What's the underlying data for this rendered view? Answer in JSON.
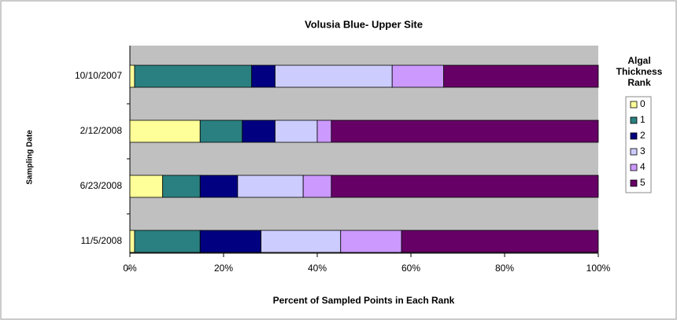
{
  "chart_data": {
    "type": "stacked_barh",
    "title": "Volusia Blue- Upper Site",
    "x_label": "Percent of Sampled Points in Each Rank",
    "y_label": "Sampling Date",
    "legend_title": "Algal Thickness Rank",
    "categories": [
      "10/10/2007",
      "2/12/2008",
      "6/23/2008",
      "11/5/2008"
    ],
    "series": [
      {
        "name": "0",
        "color": "#ffff99",
        "values": [
          1,
          15,
          7,
          1
        ]
      },
      {
        "name": "1",
        "color": "#2a8080",
        "values": [
          25,
          9,
          8,
          14
        ]
      },
      {
        "name": "2",
        "color": "#000080",
        "values": [
          5,
          7,
          8,
          13
        ]
      },
      {
        "name": "3",
        "color": "#ccccff",
        "values": [
          25,
          9,
          14,
          17
        ]
      },
      {
        "name": "4",
        "color": "#cc99ff",
        "values": [
          11,
          3,
          6,
          13
        ]
      },
      {
        "name": "5",
        "color": "#660066",
        "values": [
          33,
          57,
          57,
          42
        ]
      }
    ],
    "xlim": [
      0,
      100
    ],
    "xticks": [
      {
        "value": 0,
        "label": "0%"
      },
      {
        "value": 20,
        "label": "20%"
      },
      {
        "value": 40,
        "label": "40%"
      },
      {
        "value": 60,
        "label": "60%"
      },
      {
        "value": 80,
        "label": "80%"
      },
      {
        "value": 100,
        "label": "100%"
      }
    ],
    "legend_position": "right"
  }
}
